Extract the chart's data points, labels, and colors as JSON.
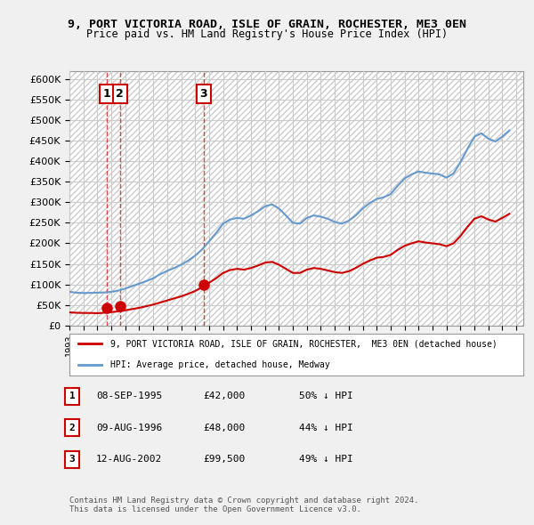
{
  "title_line1": "9, PORT VICTORIA ROAD, ISLE OF GRAIN, ROCHESTER, ME3 0EN",
  "title_line2": "Price paid vs. HM Land Registry's House Price Index (HPI)",
  "ylabel_values": [
    "£0",
    "£50K",
    "£100K",
    "£150K",
    "£200K",
    "£250K",
    "£300K",
    "£350K",
    "£400K",
    "£450K",
    "£500K",
    "£550K",
    "£600K"
  ],
  "yticks": [
    0,
    50000,
    100000,
    150000,
    200000,
    250000,
    300000,
    350000,
    400000,
    450000,
    500000,
    550000,
    600000
  ],
  "xlim_start": 1993.0,
  "xlim_end": 2025.5,
  "ylim_min": 0,
  "ylim_max": 620000,
  "background_color": "#f0f0f0",
  "plot_bg_color": "#ffffff",
  "hpi_color": "#6699cc",
  "price_color": "#cc0000",
  "grid_color": "#cccccc",
  "transactions": [
    {
      "year_float": 1995.69,
      "price": 42000,
      "label": "1"
    },
    {
      "year_float": 1996.61,
      "price": 48000,
      "label": "2"
    },
    {
      "year_float": 2002.61,
      "price": 99500,
      "label": "3"
    }
  ],
  "legend_line1": "9, PORT VICTORIA ROAD, ISLE OF GRAIN, ROCHESTER,  ME3 0EN (detached house)",
  "legend_line2": "HPI: Average price, detached house, Medway",
  "table_rows": [
    {
      "num": "1",
      "date": "08-SEP-1995",
      "price": "£42,000",
      "pct": "50% ↓ HPI"
    },
    {
      "num": "2",
      "date": "09-AUG-1996",
      "price": "£48,000",
      "pct": "44% ↓ HPI"
    },
    {
      "num": "3",
      "date": "12-AUG-2002",
      "price": "£99,500",
      "pct": "49% ↓ HPI"
    }
  ],
  "footer": "Contains HM Land Registry data © Crown copyright and database right 2024.\nThis data is licensed under the Open Government Licence v3.0.",
  "hpi_data": {
    "years": [
      1993.0,
      1993.5,
      1994.0,
      1994.5,
      1995.0,
      1995.5,
      1996.0,
      1996.5,
      1997.0,
      1997.5,
      1998.0,
      1998.5,
      1999.0,
      1999.5,
      2000.0,
      2000.5,
      2001.0,
      2001.5,
      2002.0,
      2002.5,
      2003.0,
      2003.5,
      2004.0,
      2004.5,
      2005.0,
      2005.5,
      2006.0,
      2006.5,
      2007.0,
      2007.5,
      2008.0,
      2008.5,
      2009.0,
      2009.5,
      2010.0,
      2010.5,
      2011.0,
      2011.5,
      2012.0,
      2012.5,
      2013.0,
      2013.5,
      2014.0,
      2014.5,
      2015.0,
      2015.5,
      2016.0,
      2016.5,
      2017.0,
      2017.5,
      2018.0,
      2018.5,
      2019.0,
      2019.5,
      2020.0,
      2020.5,
      2021.0,
      2021.5,
      2022.0,
      2022.5,
      2023.0,
      2023.5,
      2024.0,
      2024.5
    ],
    "values": [
      82000,
      80000,
      79000,
      79500,
      80000,
      80500,
      82000,
      85000,
      90000,
      96000,
      102000,
      108000,
      115000,
      125000,
      133000,
      140000,
      148000,
      158000,
      170000,
      185000,
      205000,
      225000,
      248000,
      258000,
      262000,
      260000,
      268000,
      278000,
      290000,
      295000,
      285000,
      268000,
      250000,
      248000,
      262000,
      268000,
      265000,
      260000,
      252000,
      248000,
      255000,
      268000,
      285000,
      298000,
      308000,
      312000,
      320000,
      340000,
      358000,
      368000,
      375000,
      372000,
      370000,
      368000,
      360000,
      370000,
      398000,
      430000,
      460000,
      468000,
      455000,
      448000,
      460000,
      475000
    ]
  },
  "price_index_data": {
    "years": [
      1993.0,
      1993.5,
      1994.0,
      1994.5,
      1995.0,
      1995.5,
      1996.0,
      1996.5,
      1997.0,
      1997.5,
      1998.0,
      1998.5,
      1999.0,
      1999.5,
      2000.0,
      2000.5,
      2001.0,
      2001.5,
      2002.0,
      2002.5,
      2003.0,
      2003.5,
      2004.0,
      2004.5,
      2005.0,
      2005.5,
      2006.0,
      2006.5,
      2007.0,
      2007.5,
      2008.0,
      2008.5,
      2009.0,
      2009.5,
      2010.0,
      2010.5,
      2011.0,
      2011.5,
      2012.0,
      2012.5,
      2013.0,
      2013.5,
      2014.0,
      2014.5,
      2015.0,
      2015.5,
      2016.0,
      2016.5,
      2017.0,
      2017.5,
      2018.0,
      2018.5,
      2019.0,
      2019.5,
      2020.0,
      2020.5,
      2021.0,
      2021.5,
      2022.0,
      2022.5,
      2023.0,
      2023.5,
      2024.0,
      2024.5
    ],
    "values": [
      32000,
      31000,
      30500,
      30500,
      30000,
      31000,
      32500,
      34500,
      37000,
      40000,
      43000,
      47000,
      51000,
      56000,
      61000,
      66000,
      71000,
      77000,
      84000,
      93000,
      104000,
      115000,
      128000,
      135000,
      138000,
      136000,
      140000,
      146000,
      153000,
      155000,
      148000,
      138000,
      128000,
      128000,
      136000,
      140000,
      138000,
      134000,
      130000,
      128000,
      132000,
      140000,
      150000,
      158000,
      165000,
      167000,
      172000,
      184000,
      194000,
      200000,
      205000,
      202000,
      200000,
      198000,
      193000,
      200000,
      218000,
      240000,
      260000,
      266000,
      258000,
      253000,
      262000,
      272000
    ]
  }
}
